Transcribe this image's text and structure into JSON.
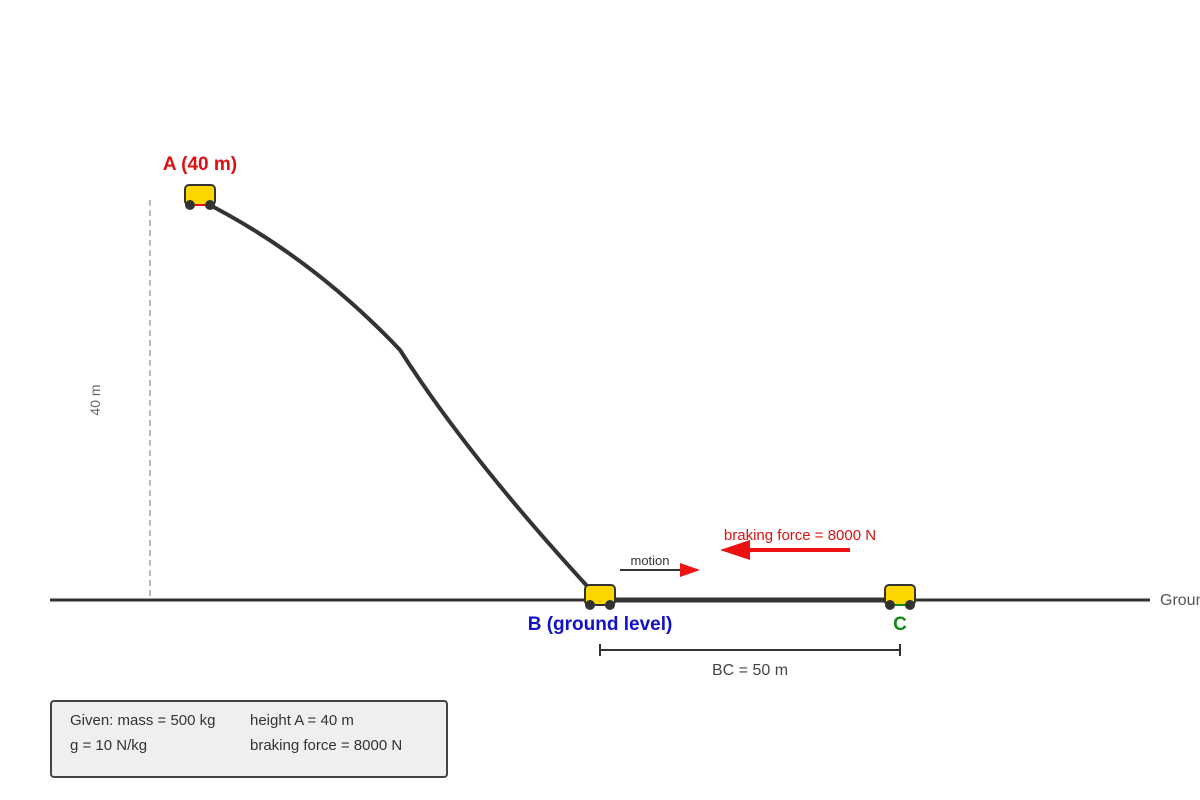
{
  "points": {
    "a_label": "A (40 m)",
    "b_label": "B (ground level)",
    "c_label": "C"
  },
  "height_marker": "40 m",
  "ground_label": "Ground",
  "bc_dimension": "BC = 50 m",
  "motion_label": "motion",
  "braking_label": "braking force = 8000 N",
  "given": {
    "mass": "Given: mass = 500 kg",
    "height": "height A = 40 m",
    "gravity": "g = 10 N/kg",
    "braking": "braking force = 8000 N"
  },
  "colors": {
    "label_a": "#dd1111",
    "label_b": "#1111cc",
    "label_c": "#118811",
    "cart_fill": "#ffd700",
    "track": "#333333",
    "arrow_red": "#ee1111"
  }
}
